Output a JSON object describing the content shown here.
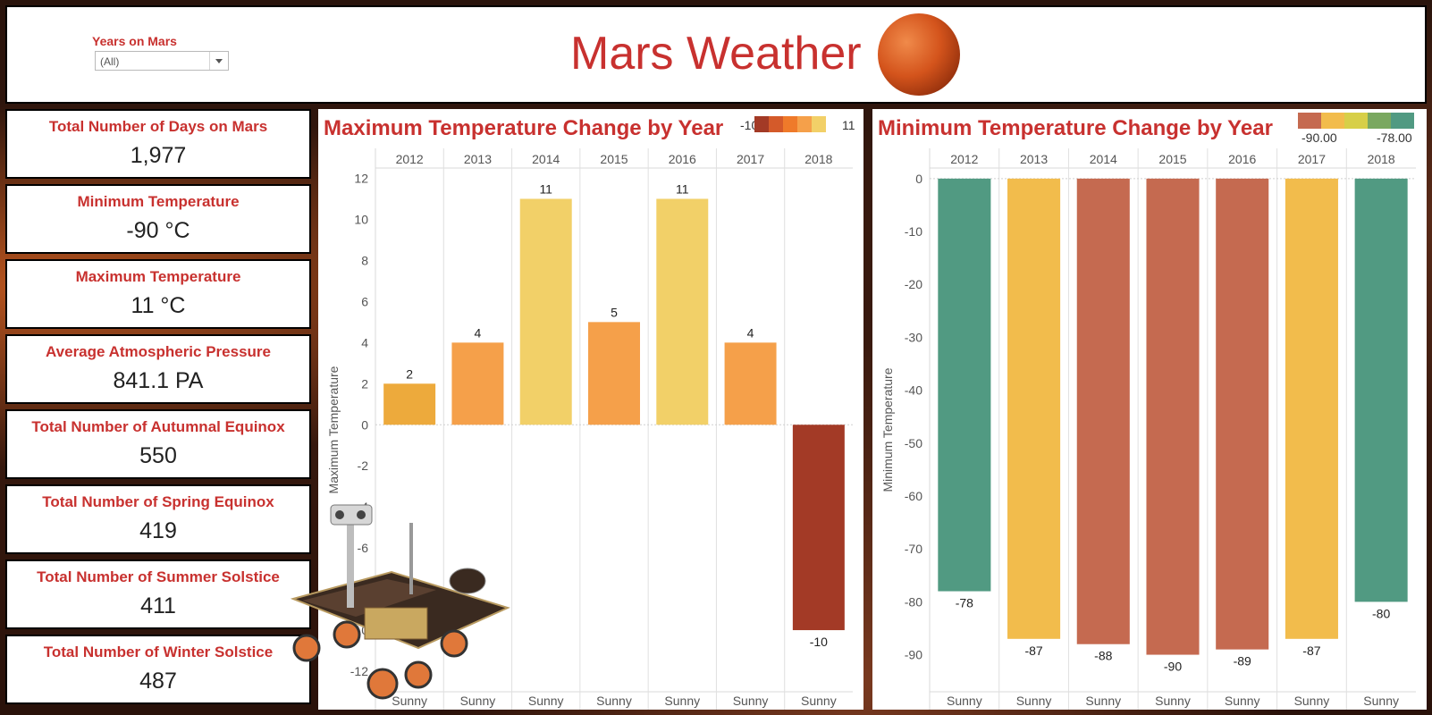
{
  "header": {
    "title": "Mars Weather",
    "filter_label": "Years on Mars",
    "filter_value": "(All)"
  },
  "kpis": [
    {
      "label": "Total Number of Days on Mars",
      "value": "1,977"
    },
    {
      "label": "Minimum Temperature",
      "value": "-90 °C"
    },
    {
      "label": "Maximum Temperature",
      "value": "11 °C"
    },
    {
      "label": "Average Atmospheric Pressure",
      "value": "841.1 PA"
    },
    {
      "label": "Total Number of Autumnal Equinox",
      "value": "550"
    },
    {
      "label": "Total Number of Spring Equinox",
      "value": "419"
    },
    {
      "label": "Total Number of Summer Solstice",
      "value": "411"
    },
    {
      "label": "Total Number of Winter Solstice",
      "value": "487"
    }
  ],
  "icons": {
    "mars": "mars-planet-icon",
    "rover": "mars-rover-icon",
    "dropdown": "chevron-down-icon"
  },
  "chart_data": [
    {
      "type": "bar",
      "title": "Maximum Temperature Change by Year",
      "ylabel": "Maximum Temperature",
      "categories": [
        "2012",
        "2013",
        "2014",
        "2015",
        "2016",
        "2017",
        "2018"
      ],
      "subcategory": "Sunny",
      "values": [
        2,
        4,
        11,
        5,
        11,
        4,
        -10
      ],
      "ylim": [
        -13,
        12.5
      ],
      "yticks": [
        12,
        10,
        8,
        6,
        4,
        2,
        0,
        -2,
        -4,
        -6,
        -8,
        -10,
        -12
      ],
      "legend": {
        "min": "-10",
        "max": "11",
        "placement": "top-right"
      },
      "colors": [
        "#edaa3c",
        "#f5a04a",
        "#f2d068",
        "#f5a04a",
        "#f2d068",
        "#f5a04a",
        "#a33a26"
      ],
      "legend_colors": [
        "#a33a26",
        "#d45a2a",
        "#ef7a2a",
        "#f5a04a",
        "#f2d068"
      ]
    },
    {
      "type": "bar",
      "title": "Minimum Temperature Change by Year",
      "ylabel": "Minimum Temperature",
      "categories": [
        "2012",
        "2013",
        "2014",
        "2015",
        "2016",
        "2017",
        "2018"
      ],
      "subcategory": "Sunny",
      "values": [
        -78,
        -87,
        -88,
        -90,
        -89,
        -87,
        -80
      ],
      "ylim": [
        -97,
        2
      ],
      "yticks": [
        0,
        -10,
        -20,
        -30,
        -40,
        -50,
        -60,
        -70,
        -80,
        -90
      ],
      "legend": {
        "min": "-90.00",
        "max": "-78.00",
        "placement": "top-right"
      },
      "colors": [
        "#519a82",
        "#f2bc4c",
        "#c56a50",
        "#c56a50",
        "#c56a50",
        "#f2bc4c",
        "#519a82"
      ],
      "legend_colors": [
        "#c56a50",
        "#f2bc4c",
        "#d7cf48",
        "#7aa860",
        "#519a82"
      ]
    }
  ]
}
